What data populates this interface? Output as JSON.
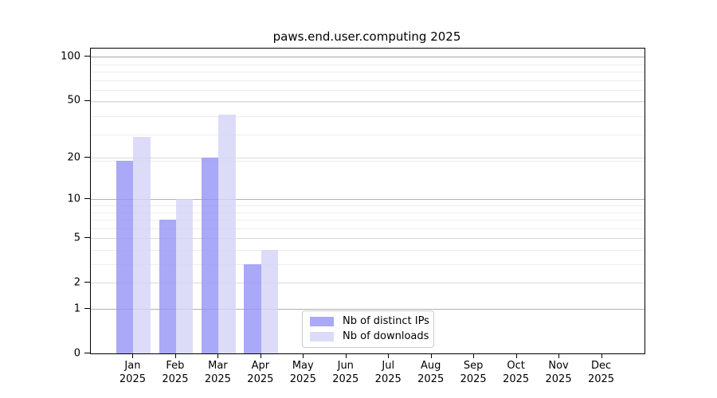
{
  "title": "paws.end.user.computing 2025",
  "colors": {
    "distinct_ips_bar": "rgba(148,148,245,0.8)",
    "downloads_bar": "rgba(211,211,248,0.8)",
    "grid_strong": "#b2b2b2",
    "grid_medium": "#d9d9d9",
    "grid_minor": "#ededed",
    "axis": "#000000",
    "legend_border": "#cccccc"
  },
  "y_axis": {
    "tick_labels": [
      "0",
      "1",
      "2",
      "5",
      "10",
      "20",
      "50",
      "100"
    ]
  },
  "x_axis": {
    "month_labels": [
      "Jan",
      "Feb",
      "Mar",
      "Apr",
      "May",
      "Jun",
      "Jul",
      "Aug",
      "Sep",
      "Oct",
      "Nov",
      "Dec"
    ],
    "year_label": "2025"
  },
  "legend": {
    "items": [
      {
        "label": "Nb of distinct IPs",
        "color_key": "distinct_ips_bar"
      },
      {
        "label": "Nb of downloads",
        "color_key": "downloads_bar"
      }
    ]
  },
  "chart_data": {
    "type": "bar",
    "title": "paws.end.user.computing 2025",
    "categories": [
      "Jan 2025",
      "Feb 2025",
      "Mar 2025",
      "Apr 2025",
      "May 2025",
      "Jun 2025",
      "Jul 2025",
      "Aug 2025",
      "Sep 2025",
      "Oct 2025",
      "Nov 2025",
      "Dec 2025"
    ],
    "series": [
      {
        "name": "Nb of distinct IPs",
        "values": [
          19,
          7,
          20,
          3,
          0,
          0,
          0,
          0,
          0,
          0,
          0,
          0
        ]
      },
      {
        "name": "Nb of downloads",
        "values": [
          28,
          10,
          40,
          4,
          0,
          0,
          0,
          0,
          0,
          0,
          0,
          0
        ]
      }
    ],
    "y_ticks": [
      0,
      1,
      2,
      5,
      10,
      20,
      50,
      100
    ],
    "y_scale": "log10(1+value)",
    "ylim": [
      0,
      114
    ],
    "xlabel": "",
    "ylabel": "",
    "grid": "both",
    "legend_position": "lower center"
  }
}
